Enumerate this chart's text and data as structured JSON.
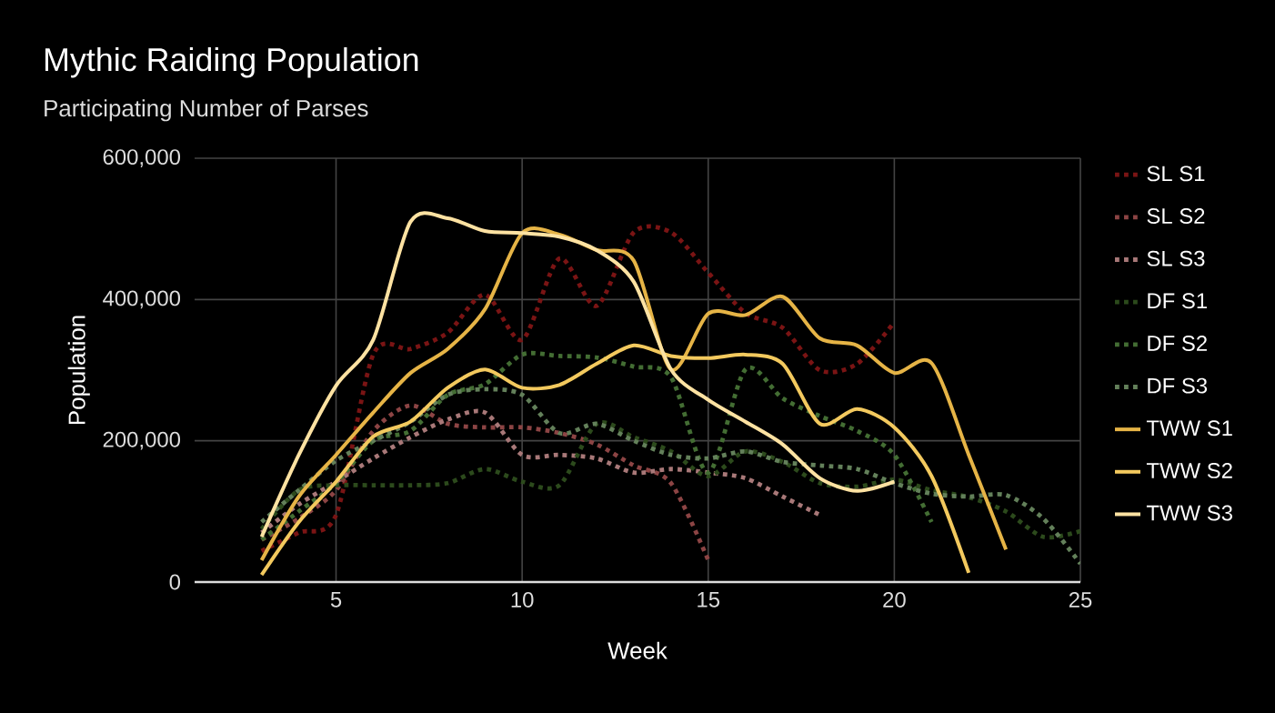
{
  "chart_data": {
    "type": "line",
    "title": "Mythic Raiding Population",
    "subtitle": "Participating Number of Parses",
    "xlabel": "Week",
    "ylabel": "Population",
    "xlim": [
      1.2,
      25
    ],
    "xticks": [
      5,
      10,
      15,
      20,
      25
    ],
    "ylim": [
      0,
      600000
    ],
    "yticks": [
      {
        "value": 0,
        "label": "0"
      },
      {
        "value": 200000,
        "label": "200,000"
      },
      {
        "value": 400000,
        "label": "400,000"
      },
      {
        "value": 600000,
        "label": "600,000"
      }
    ],
    "grid": true,
    "legend": "right",
    "series": [
      {
        "name": "SL S1",
        "color": "#7a1414",
        "line_style": "dotted",
        "x": [
          3,
          4,
          5,
          6,
          7,
          8,
          9,
          10,
          11,
          12,
          13,
          14,
          15,
          16,
          17,
          18,
          19,
          20
        ],
        "values": [
          44000,
          70000,
          95000,
          322000,
          330000,
          353000,
          407000,
          343000,
          458000,
          391000,
          495000,
          495000,
          438000,
          381000,
          360000,
          300000,
          309000,
          368000
        ]
      },
      {
        "name": "SL S2",
        "color": "#8c4444",
        "line_style": "dotted",
        "x": [
          3,
          4,
          5,
          6,
          7,
          8,
          9,
          10,
          11,
          12,
          13,
          14,
          15
        ],
        "values": [
          60000,
          90000,
          130000,
          214000,
          250000,
          224000,
          219000,
          219000,
          211000,
          195000,
          165000,
          140000,
          31000
        ]
      },
      {
        "name": "SL S3",
        "color": "#a87878",
        "line_style": "dotted",
        "x": [
          3,
          4,
          5,
          6,
          7,
          8,
          9,
          10,
          11,
          12,
          13,
          14,
          15,
          16,
          17,
          18
        ],
        "values": [
          70000,
          110000,
          142000,
          175000,
          205000,
          230000,
          240000,
          180000,
          180000,
          175000,
          155000,
          160000,
          155000,
          147000,
          121000,
          95000
        ]
      },
      {
        "name": "DF S1",
        "color": "#2c4a1c",
        "line_style": "dotted",
        "x": [
          3,
          4,
          5,
          6,
          7,
          8,
          9,
          10,
          11,
          12,
          13,
          14,
          15,
          16,
          17,
          18,
          19,
          20,
          21,
          22,
          23,
          24,
          25
        ],
        "values": [
          75000,
          130000,
          137000,
          137000,
          137000,
          140000,
          160000,
          142000,
          137000,
          224000,
          205000,
          185000,
          150000,
          185000,
          170000,
          140000,
          135000,
          145000,
          130000,
          120000,
          100000,
          64000,
          72000
        ]
      },
      {
        "name": "DF S2",
        "color": "#436d33",
        "line_style": "dotted",
        "x": [
          3,
          4,
          5,
          6,
          7,
          8,
          9,
          10,
          11,
          12,
          13,
          14,
          15,
          16,
          17,
          18,
          19,
          20,
          21
        ],
        "values": [
          60000,
          100000,
          140000,
          200000,
          214000,
          265000,
          280000,
          322000,
          320000,
          318000,
          305000,
          290000,
          155000,
          301000,
          260000,
          235000,
          214000,
          180000,
          85000
        ]
      },
      {
        "name": "DF S3",
        "color": "#63805a",
        "line_style": "dotted",
        "x": [
          3,
          4,
          5,
          6,
          7,
          8,
          9,
          10,
          11,
          12,
          13,
          14,
          15,
          16,
          17,
          18,
          19,
          20,
          21,
          22,
          23,
          24,
          25
        ],
        "values": [
          85000,
          130000,
          172000,
          200000,
          227000,
          265000,
          273000,
          265000,
          211000,
          224000,
          200000,
          180000,
          175000,
          185000,
          170000,
          165000,
          160000,
          140000,
          125000,
          121000,
          123000,
          90000,
          26000
        ]
      },
      {
        "name": "TWW S1",
        "color": "#e6b446",
        "line_style": "solid",
        "x": [
          3,
          4,
          5,
          6,
          7,
          8,
          9,
          10,
          11,
          12,
          13,
          14,
          15,
          16,
          17,
          18,
          19,
          20,
          21,
          22,
          23
        ],
        "values": [
          31000,
          121000,
          180000,
          240000,
          296000,
          330000,
          386000,
          494000,
          492000,
          470000,
          455000,
          301000,
          380000,
          378000,
          404000,
          345000,
          335000,
          296000,
          310000,
          180000,
          46000
        ]
      },
      {
        "name": "TWW S2",
        "color": "#f3c95e",
        "line_style": "solid",
        "x": [
          3,
          4,
          5,
          6,
          7,
          8,
          9,
          10,
          11,
          12,
          13,
          14,
          15,
          16,
          17,
          18,
          19,
          20,
          21,
          22
        ],
        "values": [
          10000,
          85000,
          142000,
          206000,
          227000,
          275000,
          301000,
          275000,
          279000,
          309000,
          335000,
          320000,
          317000,
          322000,
          309000,
          224000,
          245000,
          219000,
          150000,
          13000
        ]
      },
      {
        "name": "TWW S3",
        "color": "#fde2a2",
        "line_style": "solid",
        "x": [
          3,
          4,
          5,
          6,
          7,
          8,
          9,
          10,
          11,
          12,
          13,
          14,
          15,
          16,
          17,
          18,
          19,
          20
        ],
        "values": [
          64000,
          180000,
          278000,
          343000,
          510000,
          515000,
          497000,
          494000,
          489000,
          470000,
          425000,
          301000,
          258000,
          227000,
          195000,
          147000,
          129000,
          142000
        ]
      }
    ]
  }
}
